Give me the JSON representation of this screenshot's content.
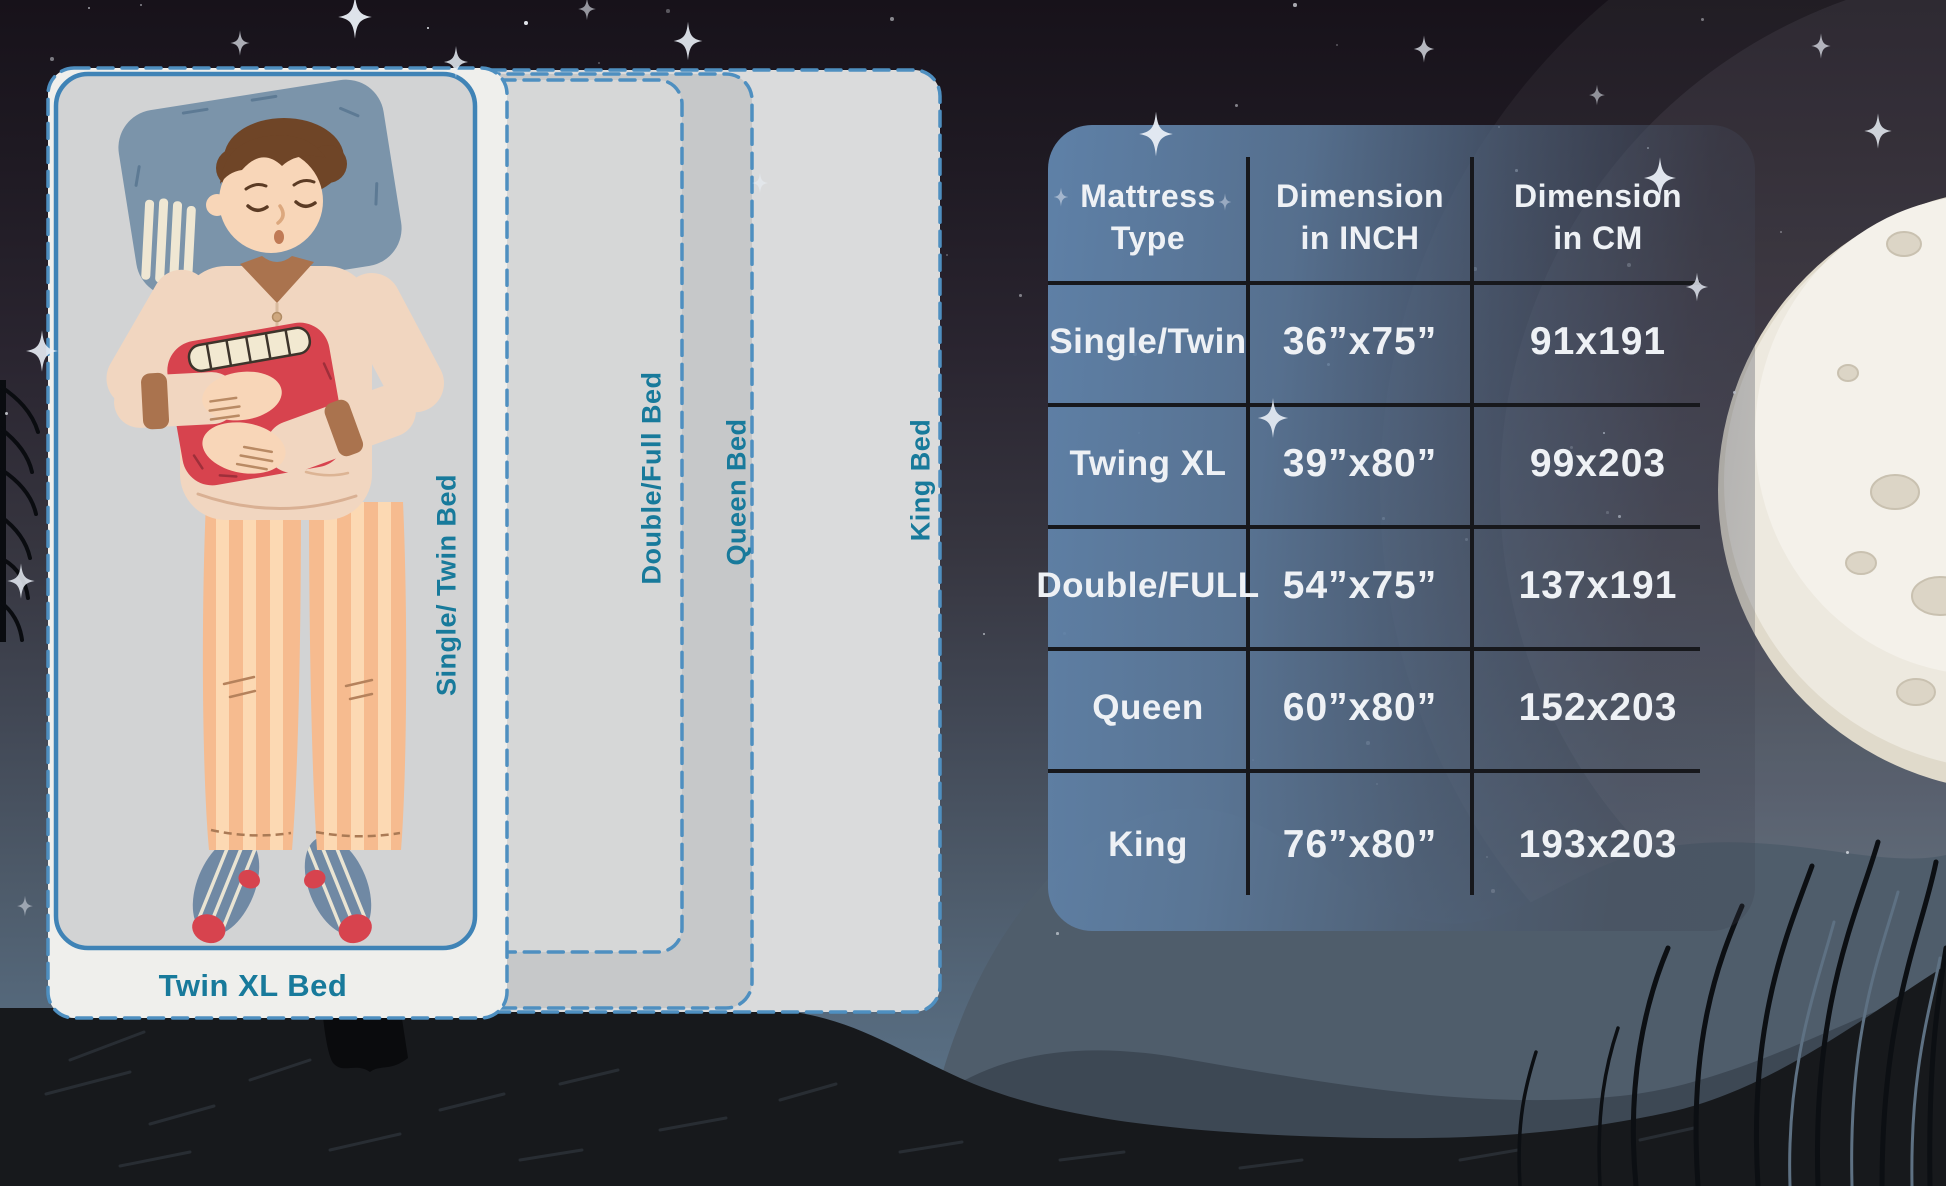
{
  "bed_diagram": {
    "beds": [
      {
        "id": "king",
        "label": "King Bed"
      },
      {
        "id": "queen",
        "label": "Queen Bed"
      },
      {
        "id": "double_full",
        "label": "Double/Full Bed"
      },
      {
        "id": "twin_xl",
        "label": "Twin XL Bed"
      },
      {
        "id": "single_twin",
        "label": "Single/ Twin Bed"
      }
    ]
  },
  "size_table": {
    "headers": [
      "Mattress\nType",
      "Dimension\nin INCH",
      "Dimension\nin CM"
    ],
    "rows": [
      {
        "type": "Single/Twin",
        "inch": "36”x75”",
        "cm": "91x191"
      },
      {
        "type": "Twing XL",
        "inch": "39”x80”",
        "cm": "99x203"
      },
      {
        "type": "Double/FULL",
        "inch": "54”x75”",
        "cm": "137x191"
      },
      {
        "type": "Queen",
        "inch": "60”x80”",
        "cm": "152x203"
      },
      {
        "type": "King",
        "inch": "76”x80”",
        "cm": "193x203"
      }
    ]
  },
  "colors": {
    "bed_label_teal": "#187a9b",
    "bed_border_blue": "#4e8fc0",
    "table_text": "#eef1f5",
    "table_grid": "#17181c",
    "panel_blue": "#5b82ac",
    "moon": "#ede9df",
    "night_sky_top": "#17121a",
    "night_sky_horizon": "#5f798e",
    "red_pillow": "#d7434e",
    "pajama": "#f1d6c0"
  }
}
